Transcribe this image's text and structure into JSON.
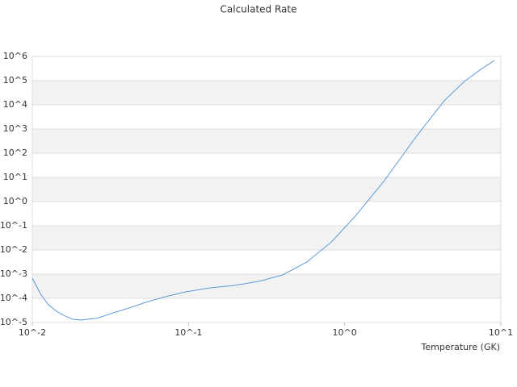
{
  "chart_data": {
    "type": "line",
    "title": "Calculated Rate",
    "xlabel": "Temperature (GK)",
    "x": [
      0.01,
      0.0113,
      0.0127,
      0.0143,
      0.0161,
      0.0182,
      0.0204,
      0.026,
      0.0329,
      0.0418,
      0.053,
      0.0713,
      0.0962,
      0.137,
      0.196,
      0.281,
      0.401,
      0.574,
      0.82,
      1.17,
      1.78,
      2.86,
      4.35,
      5.85,
      7.43,
      9.1
    ],
    "values": [
      0.00068,
      0.00015,
      5.4e-05,
      2.9e-05,
      1.9e-05,
      1.35e-05,
      1.26e-05,
      1.5e-05,
      2.5e-05,
      4e-05,
      6.8e-05,
      0.000117,
      0.000185,
      0.00027,
      0.00034,
      0.0005,
      0.00093,
      0.0032,
      0.021,
      0.25,
      6.8,
      470,
      15000,
      93000,
      290000,
      680000
    ],
    "color": "#4a90d9",
    "band_color": "#f2f2f2",
    "xscale": "log",
    "yscale": "log",
    "xlim": [
      0.01,
      10
    ],
    "xticks": [
      {
        "value": 0.01,
        "label": "10^-2"
      },
      {
        "value": 0.1,
        "label": "10^-1"
      },
      {
        "value": 1,
        "label": "10^0"
      },
      {
        "value": 10,
        "label": "10^1"
      }
    ],
    "ylim": [
      1e-05,
      1000000
    ],
    "yticks": [
      {
        "value": 1e-05,
        "label": "10^-5"
      },
      {
        "value": 0.0001,
        "label": "10^-4"
      },
      {
        "value": 0.001,
        "label": "10^-3"
      },
      {
        "value": 0.01,
        "label": "10^-2"
      },
      {
        "value": 0.1,
        "label": "10^-1"
      },
      {
        "value": 1,
        "label": "10^0"
      },
      {
        "value": 10,
        "label": "10^1"
      },
      {
        "value": 100,
        "label": "10^2"
      },
      {
        "value": 1000,
        "label": "10^3"
      },
      {
        "value": 10000,
        "label": "10^4"
      },
      {
        "value": 100000,
        "label": "10^5"
      },
      {
        "value": 1000000,
        "label": "10^6"
      }
    ],
    "grid": true
  }
}
